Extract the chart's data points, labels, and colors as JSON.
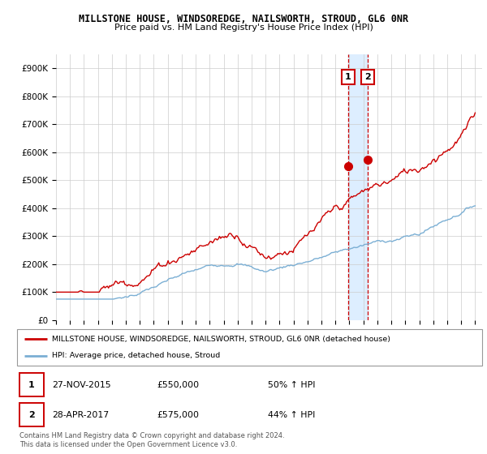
{
  "title": "MILLSTONE HOUSE, WINDSOREDGE, NAILSWORTH, STROUD, GL6 0NR",
  "subtitle": "Price paid vs. HM Land Registry's House Price Index (HPI)",
  "ylabel_ticks": [
    "£0",
    "£100K",
    "£200K",
    "£300K",
    "£400K",
    "£500K",
    "£600K",
    "£700K",
    "£800K",
    "£900K"
  ],
  "ytick_values": [
    0,
    100000,
    200000,
    300000,
    400000,
    500000,
    600000,
    700000,
    800000,
    900000
  ],
  "ylim": [
    0,
    950000
  ],
  "xlim_start": 1995.0,
  "xlim_end": 2025.5,
  "red_color": "#cc0000",
  "blue_color": "#7bafd4",
  "shade_color": "#ddeeff",
  "marker1_date": 2015.91,
  "marker2_date": 2017.32,
  "marker1_value": 550000,
  "marker2_value": 575000,
  "legend_label_red": "MILLSTONE HOUSE, WINDSOREDGE, NAILSWORTH, STROUD, GL6 0NR (detached house)",
  "legend_label_blue": "HPI: Average price, detached house, Stroud",
  "table_row1": [
    "1",
    "27-NOV-2015",
    "£550,000",
    "50% ↑ HPI"
  ],
  "table_row2": [
    "2",
    "28-APR-2017",
    "£575,000",
    "44% ↑ HPI"
  ],
  "footnote": "Contains HM Land Registry data © Crown copyright and database right 2024.\nThis data is licensed under the Open Government Licence v3.0.",
  "background_color": "#ffffff",
  "grid_color": "#cccccc"
}
